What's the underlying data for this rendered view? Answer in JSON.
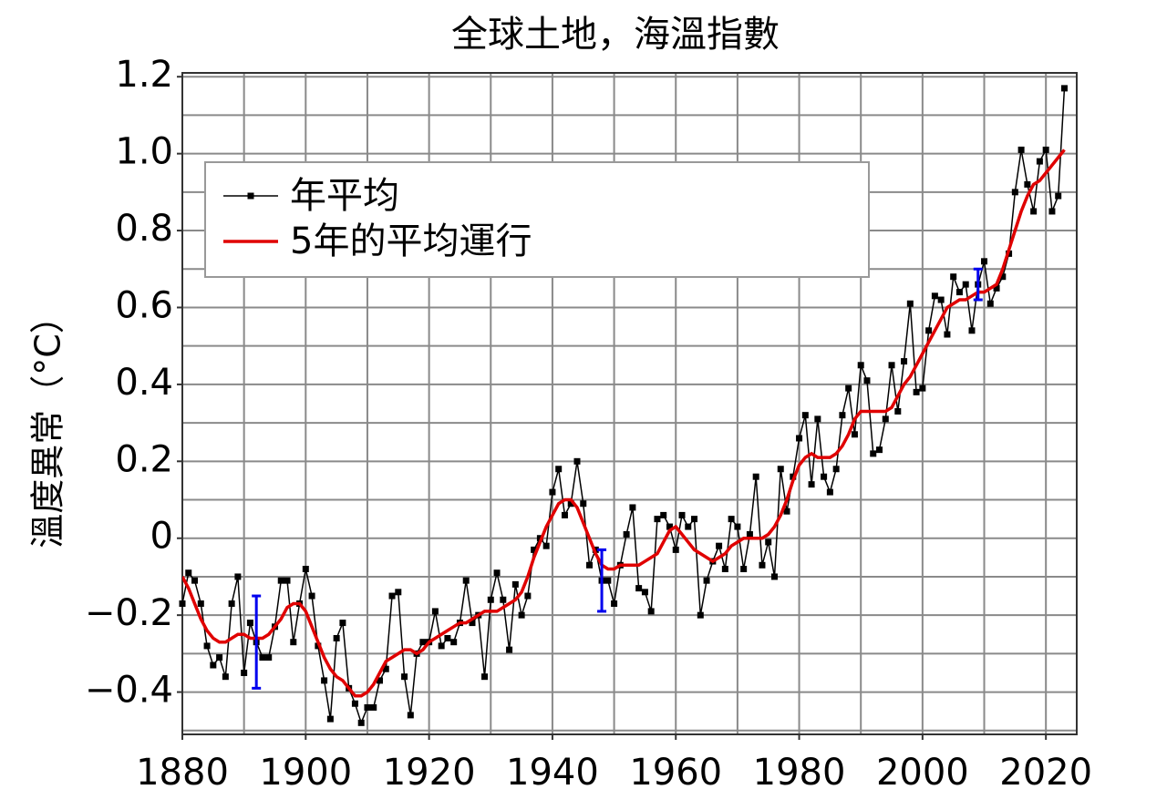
{
  "chart_data": {
    "type": "line",
    "title": "全球土地，海溫指數",
    "y_label": "溫度異常（°C）",
    "x": [
      1880,
      1881,
      1882,
      1883,
      1884,
      1885,
      1886,
      1887,
      1888,
      1889,
      1890,
      1891,
      1892,
      1893,
      1894,
      1895,
      1896,
      1897,
      1898,
      1899,
      1900,
      1901,
      1902,
      1903,
      1904,
      1905,
      1906,
      1907,
      1908,
      1909,
      1910,
      1911,
      1912,
      1913,
      1914,
      1915,
      1916,
      1917,
      1918,
      1919,
      1920,
      1921,
      1922,
      1923,
      1924,
      1925,
      1926,
      1927,
      1928,
      1929,
      1930,
      1931,
      1932,
      1933,
      1934,
      1935,
      1936,
      1937,
      1938,
      1939,
      1940,
      1941,
      1942,
      1943,
      1944,
      1945,
      1946,
      1947,
      1948,
      1949,
      1950,
      1951,
      1952,
      1953,
      1954,
      1955,
      1956,
      1957,
      1958,
      1959,
      1960,
      1961,
      1962,
      1963,
      1964,
      1965,
      1966,
      1967,
      1968,
      1969,
      1970,
      1971,
      1972,
      1973,
      1974,
      1975,
      1976,
      1977,
      1978,
      1979,
      1980,
      1981,
      1982,
      1983,
      1984,
      1985,
      1986,
      1987,
      1988,
      1989,
      1990,
      1991,
      1992,
      1993,
      1994,
      1995,
      1996,
      1997,
      1998,
      1999,
      2000,
      2001,
      2002,
      2003,
      2004,
      2005,
      2006,
      2007,
      2008,
      2009,
      2010,
      2011,
      2012,
      2013,
      2014,
      2015,
      2016,
      2017,
      2018,
      2019,
      2020,
      2021,
      2022,
      2023
    ],
    "series": [
      {
        "name": "年平均",
        "color": "#000000",
        "marker": "square",
        "values": [
          -0.17,
          -0.09,
          -0.11,
          -0.17,
          -0.28,
          -0.33,
          -0.31,
          -0.36,
          -0.17,
          -0.1,
          -0.35,
          -0.22,
          -0.27,
          -0.31,
          -0.31,
          -0.23,
          -0.11,
          -0.11,
          -0.27,
          -0.17,
          -0.08,
          -0.15,
          -0.28,
          -0.37,
          -0.47,
          -0.26,
          -0.22,
          -0.39,
          -0.43,
          -0.48,
          -0.44,
          -0.44,
          -0.37,
          -0.34,
          -0.15,
          -0.14,
          -0.36,
          -0.46,
          -0.3,
          -0.27,
          -0.27,
          -0.19,
          -0.28,
          -0.26,
          -0.27,
          -0.22,
          -0.11,
          -0.22,
          -0.2,
          -0.36,
          -0.16,
          -0.09,
          -0.16,
          -0.29,
          -0.12,
          -0.2,
          -0.15,
          -0.03,
          0,
          -0.02,
          0.12,
          0.18,
          0.06,
          0.09,
          0.2,
          0.09,
          -0.07,
          -0.03,
          -0.11,
          -0.11,
          -0.17,
          -0.07,
          0.01,
          0.08,
          -0.13,
          -0.14,
          -0.19,
          0.05,
          0.06,
          0.03,
          -0.03,
          0.06,
          0.03,
          0.05,
          -0.2,
          -0.11,
          -0.06,
          -0.02,
          -0.08,
          0.05,
          0.03,
          -0.08,
          0.01,
          0.16,
          -0.07,
          -0.01,
          -0.1,
          0.18,
          0.07,
          0.16,
          0.26,
          0.32,
          0.14,
          0.31,
          0.16,
          0.12,
          0.18,
          0.32,
          0.39,
          0.27,
          0.45,
          0.41,
          0.22,
          0.23,
          0.31,
          0.45,
          0.33,
          0.46,
          0.61,
          0.38,
          0.39,
          0.54,
          0.63,
          0.62,
          0.53,
          0.68,
          0.64,
          0.66,
          0.54,
          0.66,
          0.72,
          0.61,
          0.65,
          0.68,
          0.74,
          0.9,
          1.01,
          0.92,
          0.85,
          0.98,
          1.01,
          0.85,
          0.89,
          1.17
        ]
      },
      {
        "name": "5年的平均運行",
        "color": "#e00000",
        "marker": "none",
        "values": [
          -0.1,
          -0.13,
          -0.17,
          -0.21,
          -0.24,
          -0.26,
          -0.27,
          -0.27,
          -0.26,
          -0.25,
          -0.25,
          -0.26,
          -0.26,
          -0.26,
          -0.25,
          -0.23,
          -0.21,
          -0.18,
          -0.17,
          -0.17,
          -0.19,
          -0.23,
          -0.27,
          -0.31,
          -0.34,
          -0.36,
          -0.37,
          -0.39,
          -0.41,
          -0.41,
          -0.4,
          -0.38,
          -0.35,
          -0.32,
          -0.31,
          -0.3,
          -0.29,
          -0.29,
          -0.3,
          -0.29,
          -0.27,
          -0.26,
          -0.25,
          -0.24,
          -0.23,
          -0.22,
          -0.22,
          -0.21,
          -0.2,
          -0.19,
          -0.19,
          -0.19,
          -0.18,
          -0.17,
          -0.16,
          -0.14,
          -0.1,
          -0.05,
          -0.01,
          0.03,
          0.06,
          0.09,
          0.1,
          0.1,
          0.08,
          0.04,
          0,
          -0.04,
          -0.07,
          -0.08,
          -0.08,
          -0.07,
          -0.07,
          -0.07,
          -0.07,
          -0.06,
          -0.05,
          -0.04,
          -0.01,
          0.02,
          0.03,
          0.01,
          -0.01,
          -0.03,
          -0.04,
          -0.05,
          -0.06,
          -0.05,
          -0.04,
          -0.02,
          -0.01,
          0,
          0,
          0,
          0,
          0.01,
          0.03,
          0.06,
          0.1,
          0.15,
          0.19,
          0.21,
          0.22,
          0.21,
          0.21,
          0.21,
          0.22,
          0.24,
          0.27,
          0.31,
          0.33,
          0.33,
          0.33,
          0.33,
          0.33,
          0.34,
          0.37,
          0.4,
          0.42,
          0.45,
          0.48,
          0.51,
          0.54,
          0.57,
          0.6,
          0.61,
          0.62,
          0.62,
          0.63,
          0.64,
          0.64,
          0.65,
          0.66,
          0.7,
          0.75,
          0.8,
          0.85,
          0.89,
          0.92,
          0.93,
          0.95,
          0.97,
          0.99,
          1.01
        ]
      }
    ],
    "error_bars": {
      "color": "#0000ee",
      "x": [
        1892,
        1948,
        2009
      ],
      "values": [
        -0.27,
        -0.11,
        0.66
      ],
      "errors": [
        0.12,
        0.08,
        0.04
      ]
    },
    "xlim": [
      1880,
      2025
    ],
    "ylim": [
      -0.51,
      1.21
    ],
    "xticks": [
      1880,
      1900,
      1920,
      1940,
      1960,
      1980,
      2000,
      2020
    ],
    "yticks": [
      {
        "value": -0.4,
        "label": "−0.4"
      },
      {
        "value": -0.2,
        "label": "−0.2"
      },
      0,
      0.2,
      0.4,
      0.6,
      0.8,
      {
        "value": 1,
        "label": "1.0"
      },
      1.2
    ],
    "xgrid": [
      1880,
      1890,
      1900,
      1910,
      1920,
      1930,
      1940,
      1950,
      1960,
      1970,
      1980,
      1990,
      2000,
      2010,
      2020
    ],
    "ygrid": [
      -0.5,
      -0.4,
      -0.3,
      -0.2,
      -0.1,
      0,
      0.1,
      0.2,
      0.3,
      0.4,
      0.5,
      0.6,
      0.7,
      0.8,
      0.9,
      1,
      1.1,
      1.2
    ],
    "grid": true,
    "legend": "upper left"
  }
}
